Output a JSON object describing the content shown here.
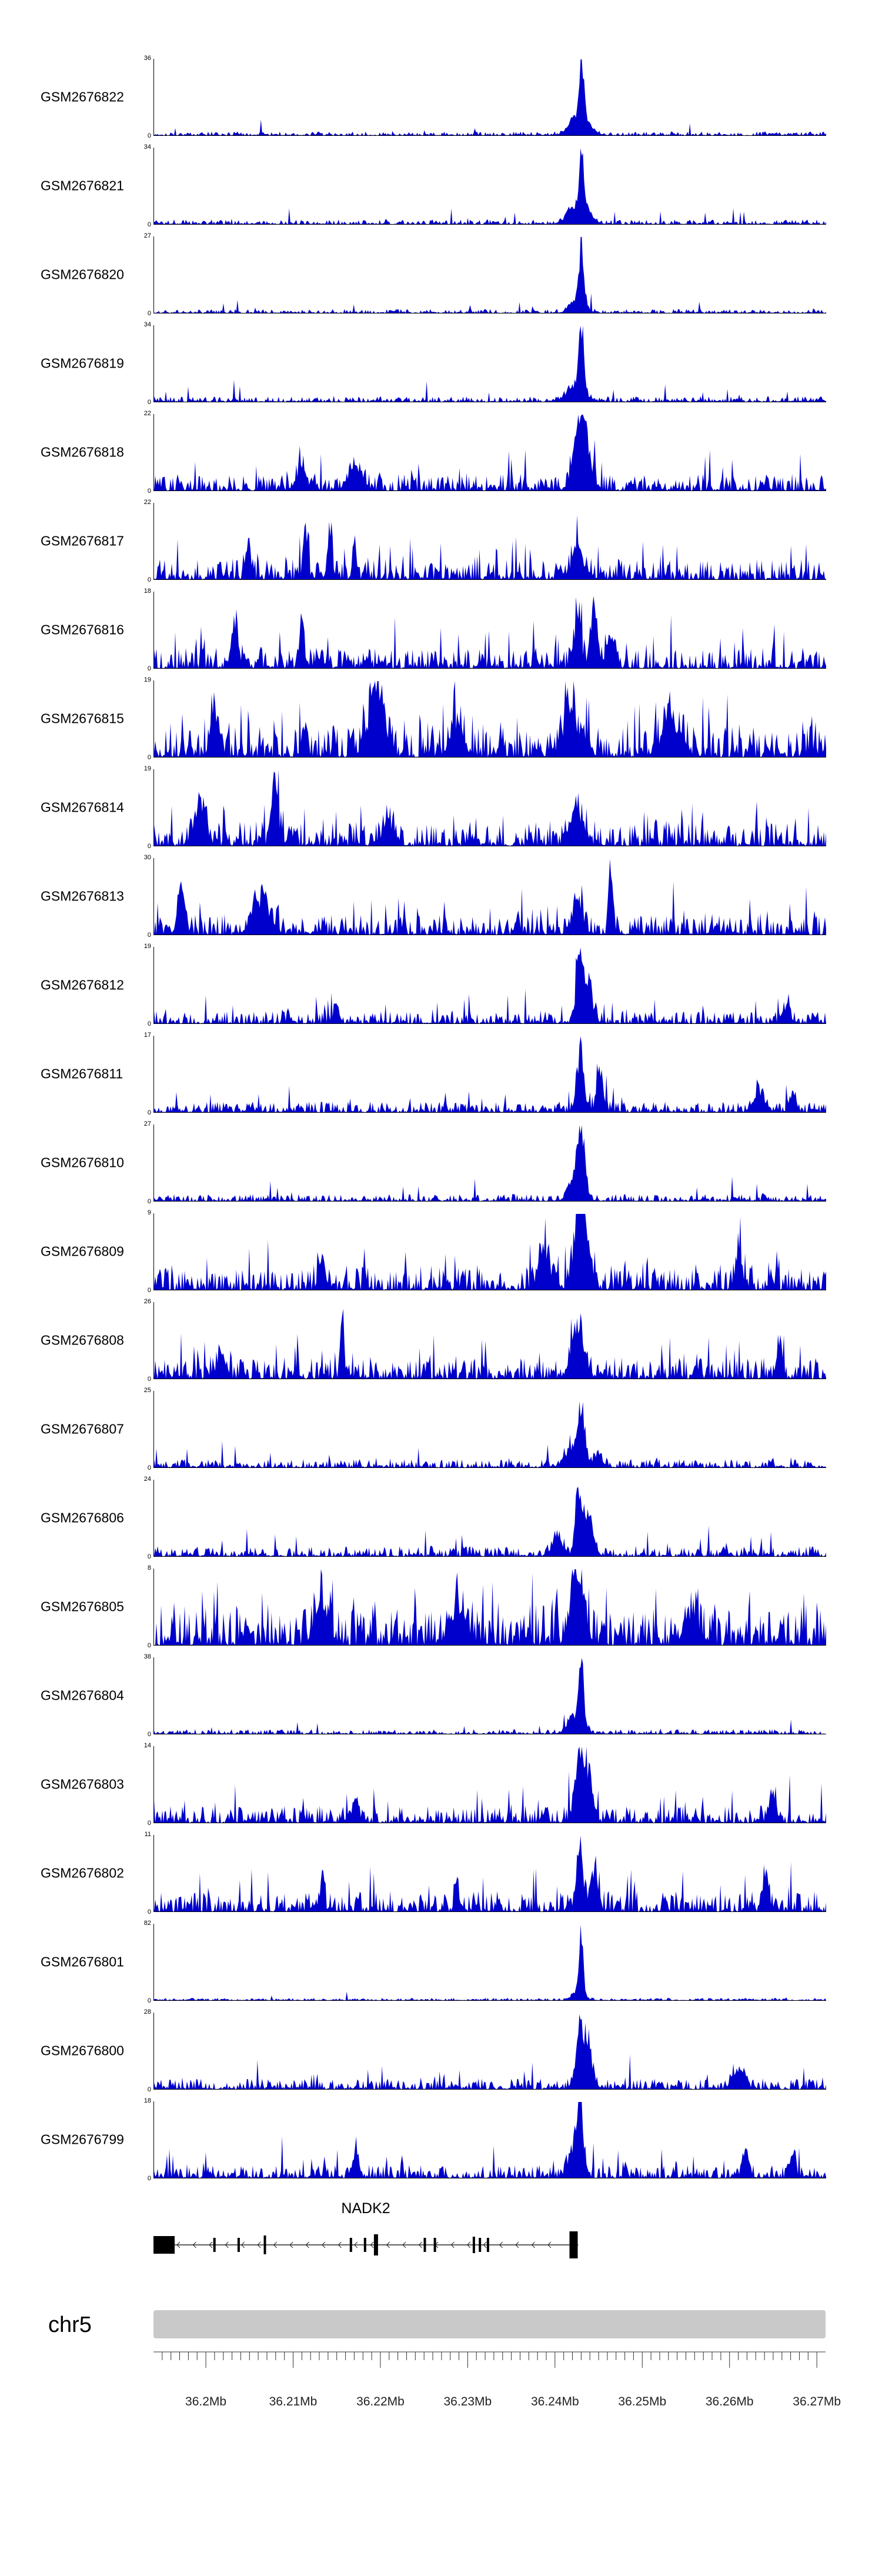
{
  "colors": {
    "signal": "#0000cc",
    "ideogram": "#c9c9c9",
    "gene": "#000000",
    "axis": "#333333"
  },
  "chart_data": {
    "type": "area",
    "title": "",
    "chromosome": "chr5",
    "x_unit": "Mb",
    "x_range_mb": [
      36.194,
      36.271
    ],
    "minor_tick_step_mb": 0.001,
    "x_ticks": [
      {
        "value": 36.2,
        "label": "36.2Mb"
      },
      {
        "value": 36.21,
        "label": "36.21Mb"
      },
      {
        "value": 36.22,
        "label": "36.22Mb"
      },
      {
        "value": 36.23,
        "label": "36.23Mb"
      },
      {
        "value": 36.24,
        "label": "36.24Mb"
      },
      {
        "value": 36.25,
        "label": "36.25Mb"
      },
      {
        "value": 36.26,
        "label": "36.26Mb"
      },
      {
        "value": 36.27,
        "label": "36.27Mb"
      }
    ],
    "gene": {
      "name": "NADK2",
      "strand": "-",
      "span_frac": [
        0.0,
        0.632
      ],
      "exons_frac": [
        [
          0.0,
          36,
          30
        ],
        [
          0.089,
          4,
          24
        ],
        [
          0.125,
          4,
          24
        ],
        [
          0.164,
          4,
          32
        ],
        [
          0.292,
          4,
          24
        ],
        [
          0.313,
          4,
          24
        ],
        [
          0.328,
          7,
          36
        ],
        [
          0.402,
          4,
          24
        ],
        [
          0.417,
          4,
          24
        ],
        [
          0.475,
          4,
          28
        ],
        [
          0.484,
          4,
          24
        ],
        [
          0.496,
          4,
          24
        ],
        [
          0.619,
          14,
          46
        ]
      ]
    },
    "tracks": [
      {
        "name": "GSM2676822",
        "ymax": 36,
        "ymin": 0,
        "profile": {
          "seed": 101,
          "noise": 0.05,
          "spike_p": 0.02,
          "spike_amp": 0.2,
          "peaks": [
            [
              0.636,
              1,
              0.0035
            ],
            [
              0.629,
              0.25,
              0.012
            ],
            [
              0.645,
              0.12,
              0.01
            ]
          ]
        }
      },
      {
        "name": "GSM2676821",
        "ymax": 34,
        "ymin": 0,
        "profile": {
          "seed": 102,
          "noise": 0.06,
          "spike_p": 0.03,
          "spike_amp": 0.22,
          "peaks": [
            [
              0.636,
              1,
              0.0035
            ],
            [
              0.627,
              0.3,
              0.012
            ],
            [
              0.648,
              0.15,
              0.008
            ]
          ]
        }
      },
      {
        "name": "GSM2676820",
        "ymax": 27,
        "ymin": 0,
        "profile": {
          "seed": 103,
          "noise": 0.05,
          "spike_p": 0.02,
          "spike_amp": 0.2,
          "peaks": [
            [
              0.636,
              1,
              0.0035
            ],
            [
              0.63,
              0.25,
              0.01
            ]
          ]
        }
      },
      {
        "name": "GSM2676819",
        "ymax": 34,
        "ymin": 0,
        "profile": {
          "seed": 104,
          "noise": 0.07,
          "spike_p": 0.04,
          "spike_amp": 0.25,
          "peaks": [
            [
              0.636,
              1,
              0.0035
            ],
            [
              0.628,
              0.3,
              0.012
            ]
          ]
        }
      },
      {
        "name": "GSM2676818",
        "ymax": 22,
        "ymin": 0,
        "profile": {
          "seed": 105,
          "noise": 0.22,
          "spike_p": 0.1,
          "spike_amp": 0.45,
          "peaks": [
            [
              0.632,
              1,
              0.008
            ],
            [
              0.643,
              0.6,
              0.008
            ],
            [
              0.3,
              0.35,
              0.01
            ],
            [
              0.22,
              0.3,
              0.008
            ]
          ]
        }
      },
      {
        "name": "GSM2676817",
        "ymax": 22,
        "ymin": 0,
        "profile": {
          "seed": 106,
          "noise": 0.27,
          "spike_p": 0.14,
          "spike_amp": 0.5,
          "peaks": [
            [
              0.225,
              1,
              0.003
            ],
            [
              0.262,
              0.85,
              0.003
            ],
            [
              0.298,
              0.7,
              0.003
            ],
            [
              0.14,
              0.55,
              0.004
            ],
            [
              0.63,
              0.45,
              0.01
            ]
          ]
        }
      },
      {
        "name": "GSM2676816",
        "ymax": 18,
        "ymin": 0,
        "profile": {
          "seed": 107,
          "noise": 0.27,
          "spike_p": 0.14,
          "spike_amp": 0.5,
          "peaks": [
            [
              0.63,
              0.95,
              0.005
            ],
            [
              0.655,
              0.8,
              0.005
            ],
            [
              0.22,
              0.8,
              0.003
            ],
            [
              0.12,
              0.5,
              0.006
            ],
            [
              0.68,
              0.6,
              0.006
            ]
          ]
        }
      },
      {
        "name": "GSM2676815",
        "ymax": 19,
        "ymin": 0,
        "profile": {
          "seed": 108,
          "noise": 0.4,
          "spike_p": 0.22,
          "spike_amp": 0.55,
          "peaks": [
            [
              0.33,
              1,
              0.012
            ],
            [
              0.09,
              0.85,
              0.006
            ],
            [
              0.62,
              0.65,
              0.012
            ],
            [
              0.45,
              0.5,
              0.01
            ],
            [
              0.77,
              0.5,
              0.015
            ]
          ]
        }
      },
      {
        "name": "GSM2676814",
        "ymax": 19,
        "ymin": 0,
        "profile": {
          "seed": 109,
          "noise": 0.32,
          "spike_p": 0.16,
          "spike_amp": 0.5,
          "peaks": [
            [
              0.18,
              1,
              0.005
            ],
            [
              0.07,
              0.6,
              0.008
            ],
            [
              0.63,
              0.55,
              0.01
            ],
            [
              0.35,
              0.4,
              0.008
            ]
          ]
        }
      },
      {
        "name": "GSM2676813",
        "ymax": 30,
        "ymin": 0,
        "profile": {
          "seed": 110,
          "noise": 0.26,
          "spike_p": 0.13,
          "spike_amp": 0.45,
          "peaks": [
            [
              0.68,
              1,
              0.003
            ],
            [
              0.16,
              0.6,
              0.012
            ],
            [
              0.04,
              0.75,
              0.005
            ],
            [
              0.63,
              0.45,
              0.008
            ]
          ]
        }
      },
      {
        "name": "GSM2676812",
        "ymax": 19,
        "ymin": 0,
        "profile": {
          "seed": 111,
          "noise": 0.16,
          "spike_p": 0.08,
          "spike_amp": 0.35,
          "peaks": [
            [
              0.633,
              1,
              0.005
            ],
            [
              0.645,
              0.55,
              0.007
            ],
            [
              0.27,
              0.35,
              0.003
            ],
            [
              0.94,
              0.3,
              0.005
            ]
          ]
        }
      },
      {
        "name": "GSM2676811",
        "ymax": 17,
        "ymin": 0,
        "profile": {
          "seed": 112,
          "noise": 0.14,
          "spike_p": 0.07,
          "spike_amp": 0.35,
          "peaks": [
            [
              0.634,
              1,
              0.005
            ],
            [
              0.664,
              0.55,
              0.005
            ],
            [
              0.9,
              0.35,
              0.008
            ],
            [
              0.95,
              0.3,
              0.005
            ]
          ]
        }
      },
      {
        "name": "GSM2676810",
        "ymax": 27,
        "ymin": 0,
        "profile": {
          "seed": 113,
          "noise": 0.09,
          "spike_p": 0.04,
          "spike_amp": 0.3,
          "peaks": [
            [
              0.636,
              1,
              0.005
            ],
            [
              0.627,
              0.45,
              0.009
            ]
          ]
        }
      },
      {
        "name": "GSM2676809",
        "ymax": 9,
        "ymin": 0,
        "profile": {
          "seed": 114,
          "noise": 0.3,
          "spike_p": 0.15,
          "spike_amp": 0.45,
          "peaks": [
            [
              0.63,
              1,
              0.007
            ],
            [
              0.642,
              0.85,
              0.007
            ],
            [
              0.58,
              0.5,
              0.008
            ],
            [
              0.87,
              0.55,
              0.005
            ],
            [
              0.25,
              0.4,
              0.005
            ]
          ]
        }
      },
      {
        "name": "GSM2676808",
        "ymax": 26,
        "ymin": 0,
        "profile": {
          "seed": 115,
          "noise": 0.28,
          "spike_p": 0.14,
          "spike_amp": 0.5,
          "peaks": [
            [
              0.28,
              1,
              0.0025
            ],
            [
              0.63,
              0.7,
              0.009
            ],
            [
              0.93,
              0.65,
              0.004
            ],
            [
              0.1,
              0.4,
              0.006
            ]
          ]
        }
      },
      {
        "name": "GSM2676807",
        "ymax": 25,
        "ymin": 0,
        "profile": {
          "seed": 116,
          "noise": 0.11,
          "spike_p": 0.05,
          "spike_amp": 0.3,
          "peaks": [
            [
              0.636,
              1,
              0.005
            ],
            [
              0.62,
              0.3,
              0.01
            ],
            [
              0.66,
              0.25,
              0.006
            ]
          ]
        }
      },
      {
        "name": "GSM2676806",
        "ymax": 24,
        "ymin": 0,
        "profile": {
          "seed": 117,
          "noise": 0.13,
          "spike_p": 0.06,
          "spike_amp": 0.35,
          "peaks": [
            [
              0.632,
              1,
              0.005
            ],
            [
              0.647,
              0.7,
              0.007
            ],
            [
              0.6,
              0.3,
              0.008
            ]
          ]
        }
      },
      {
        "name": "GSM2676805",
        "ymax": 8,
        "ymin": 0,
        "profile": {
          "seed": 118,
          "noise": 0.45,
          "spike_p": 0.28,
          "spike_amp": 0.55,
          "peaks": [
            [
              0.63,
              1,
              0.009
            ],
            [
              0.25,
              0.65,
              0.01
            ],
            [
              0.45,
              0.55,
              0.01
            ],
            [
              0.8,
              0.5,
              0.01
            ]
          ]
        }
      },
      {
        "name": "GSM2676804",
        "ymax": 38,
        "ymin": 0,
        "profile": {
          "seed": 119,
          "noise": 0.06,
          "spike_p": 0.03,
          "spike_amp": 0.2,
          "peaks": [
            [
              0.636,
              1,
              0.0035
            ],
            [
              0.628,
              0.3,
              0.011
            ]
          ]
        }
      },
      {
        "name": "GSM2676803",
        "ymax": 14,
        "ymin": 0,
        "profile": {
          "seed": 120,
          "noise": 0.22,
          "spike_p": 0.11,
          "spike_amp": 0.45,
          "peaks": [
            [
              0.633,
              1,
              0.007
            ],
            [
              0.645,
              0.7,
              0.007
            ],
            [
              0.92,
              0.45,
              0.005
            ],
            [
              0.3,
              0.35,
              0.005
            ]
          ]
        }
      },
      {
        "name": "GSM2676802",
        "ymax": 11,
        "ymin": 0,
        "profile": {
          "seed": 121,
          "noise": 0.27,
          "spike_p": 0.14,
          "spike_amp": 0.55,
          "peaks": [
            [
              0.633,
              1,
              0.005
            ],
            [
              0.655,
              0.8,
              0.005
            ],
            [
              0.25,
              0.65,
              0.003
            ],
            [
              0.91,
              0.75,
              0.004
            ],
            [
              0.45,
              0.5,
              0.003
            ]
          ]
        }
      },
      {
        "name": "GSM2676801",
        "ymax": 82,
        "ymin": 0,
        "profile": {
          "seed": 122,
          "noise": 0.03,
          "spike_p": 0.01,
          "spike_amp": 0.12,
          "peaks": [
            [
              0.636,
              1,
              0.003
            ],
            [
              0.63,
              0.15,
              0.008
            ]
          ]
        }
      },
      {
        "name": "GSM2676800",
        "ymax": 28,
        "ymin": 0,
        "profile": {
          "seed": 123,
          "noise": 0.14,
          "spike_p": 0.07,
          "spike_amp": 0.35,
          "peaks": [
            [
              0.632,
              1,
              0.005
            ],
            [
              0.645,
              0.75,
              0.007
            ],
            [
              0.87,
              0.35,
              0.008
            ]
          ]
        }
      },
      {
        "name": "GSM2676799",
        "ymax": 18,
        "ymin": 0,
        "profile": {
          "seed": 124,
          "noise": 0.17,
          "spike_p": 0.08,
          "spike_amp": 0.4,
          "peaks": [
            [
              0.634,
              1,
              0.005
            ],
            [
              0.624,
              0.5,
              0.007
            ],
            [
              0.88,
              0.4,
              0.005
            ],
            [
              0.95,
              0.35,
              0.004
            ],
            [
              0.3,
              0.3,
              0.004
            ]
          ]
        }
      }
    ]
  }
}
